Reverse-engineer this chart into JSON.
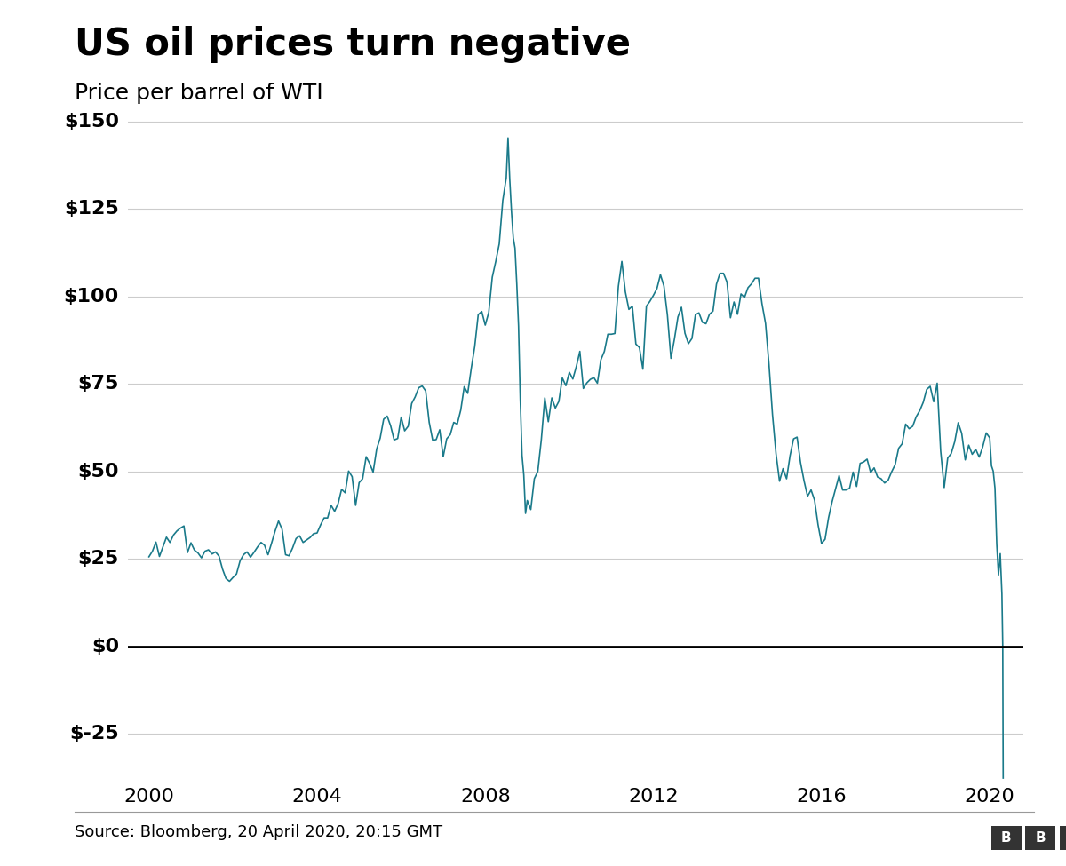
{
  "title": "US oil prices turn negative",
  "subtitle": "Price per barrel of WTI",
  "source_text": "Source: Bloomberg, 20 April 2020, 20:15 GMT",
  "line_color": "#1a7a8a",
  "background_color": "#ffffff",
  "zero_line_color": "#000000",
  "grid_color": "#cccccc",
  "title_fontsize": 30,
  "subtitle_fontsize": 18,
  "ytick_labels": [
    "$-25",
    "$0",
    "$25",
    "$50",
    "$75",
    "$100",
    "$125",
    "$150"
  ],
  "ytick_values": [
    -25,
    0,
    25,
    50,
    75,
    100,
    125,
    150
  ],
  "ylim": [
    -38,
    155
  ],
  "xlim_start": 1999.5,
  "xlim_end": 2020.8,
  "xtick_years": [
    2000,
    2004,
    2008,
    2012,
    2016,
    2020
  ],
  "wti_data": [
    [
      2000.0,
      25.6
    ],
    [
      2000.083,
      27.2
    ],
    [
      2000.167,
      29.8
    ],
    [
      2000.25,
      25.7
    ],
    [
      2000.333,
      28.4
    ],
    [
      2000.417,
      31.2
    ],
    [
      2000.5,
      29.7
    ],
    [
      2000.583,
      31.8
    ],
    [
      2000.667,
      33.0
    ],
    [
      2000.75,
      33.8
    ],
    [
      2000.833,
      34.4
    ],
    [
      2000.917,
      26.8
    ],
    [
      2001.0,
      29.6
    ],
    [
      2001.083,
      27.5
    ],
    [
      2001.167,
      26.7
    ],
    [
      2001.25,
      25.3
    ],
    [
      2001.333,
      27.2
    ],
    [
      2001.417,
      27.6
    ],
    [
      2001.5,
      26.4
    ],
    [
      2001.583,
      27.0
    ],
    [
      2001.667,
      25.8
    ],
    [
      2001.75,
      22.1
    ],
    [
      2001.833,
      19.4
    ],
    [
      2001.917,
      18.6
    ],
    [
      2002.0,
      19.7
    ],
    [
      2002.083,
      20.7
    ],
    [
      2002.167,
      24.4
    ],
    [
      2002.25,
      26.2
    ],
    [
      2002.333,
      27.0
    ],
    [
      2002.417,
      25.5
    ],
    [
      2002.5,
      26.9
    ],
    [
      2002.583,
      28.4
    ],
    [
      2002.667,
      29.7
    ],
    [
      2002.75,
      28.9
    ],
    [
      2002.833,
      26.2
    ],
    [
      2002.917,
      29.5
    ],
    [
      2003.0,
      32.9
    ],
    [
      2003.083,
      35.8
    ],
    [
      2003.167,
      33.5
    ],
    [
      2003.25,
      26.2
    ],
    [
      2003.333,
      25.9
    ],
    [
      2003.417,
      28.1
    ],
    [
      2003.5,
      30.8
    ],
    [
      2003.583,
      31.6
    ],
    [
      2003.667,
      29.7
    ],
    [
      2003.75,
      30.4
    ],
    [
      2003.833,
      31.1
    ],
    [
      2003.917,
      32.2
    ],
    [
      2004.0,
      32.4
    ],
    [
      2004.083,
      34.7
    ],
    [
      2004.167,
      36.7
    ],
    [
      2004.25,
      36.7
    ],
    [
      2004.333,
      40.3
    ],
    [
      2004.417,
      38.6
    ],
    [
      2004.5,
      40.8
    ],
    [
      2004.583,
      44.9
    ],
    [
      2004.667,
      43.9
    ],
    [
      2004.75,
      50.1
    ],
    [
      2004.833,
      48.5
    ],
    [
      2004.917,
      40.3
    ],
    [
      2005.0,
      46.8
    ],
    [
      2005.083,
      47.9
    ],
    [
      2005.167,
      54.2
    ],
    [
      2005.25,
      52.3
    ],
    [
      2005.333,
      49.8
    ],
    [
      2005.417,
      56.4
    ],
    [
      2005.5,
      59.5
    ],
    [
      2005.583,
      64.9
    ],
    [
      2005.667,
      65.8
    ],
    [
      2005.75,
      63.0
    ],
    [
      2005.833,
      59.0
    ],
    [
      2005.917,
      59.4
    ],
    [
      2006.0,
      65.5
    ],
    [
      2006.083,
      61.6
    ],
    [
      2006.167,
      62.9
    ],
    [
      2006.25,
      69.4
    ],
    [
      2006.333,
      71.3
    ],
    [
      2006.417,
      73.9
    ],
    [
      2006.5,
      74.4
    ],
    [
      2006.583,
      73.0
    ],
    [
      2006.667,
      64.0
    ],
    [
      2006.75,
      58.9
    ],
    [
      2006.833,
      59.1
    ],
    [
      2006.917,
      61.9
    ],
    [
      2007.0,
      54.2
    ],
    [
      2007.083,
      59.3
    ],
    [
      2007.167,
      60.5
    ],
    [
      2007.25,
      64.0
    ],
    [
      2007.333,
      63.5
    ],
    [
      2007.417,
      67.5
    ],
    [
      2007.5,
      74.2
    ],
    [
      2007.583,
      72.3
    ],
    [
      2007.667,
      79.4
    ],
    [
      2007.75,
      85.7
    ],
    [
      2007.833,
      94.8
    ],
    [
      2007.917,
      95.7
    ],
    [
      2008.0,
      91.8
    ],
    [
      2008.083,
      95.4
    ],
    [
      2008.167,
      105.5
    ],
    [
      2008.25,
      110.0
    ],
    [
      2008.333,
      115.0
    ],
    [
      2008.417,
      127.4
    ],
    [
      2008.5,
      133.9
    ],
    [
      2008.542,
      145.3
    ],
    [
      2008.583,
      133.4
    ],
    [
      2008.625,
      124.1
    ],
    [
      2008.667,
      116.7
    ],
    [
      2008.708,
      113.8
    ],
    [
      2008.75,
      103.6
    ],
    [
      2008.792,
      91.5
    ],
    [
      2008.833,
      70.5
    ],
    [
      2008.875,
      54.6
    ],
    [
      2008.917,
      49.0
    ],
    [
      2008.958,
      38.0
    ],
    [
      2009.0,
      41.7
    ],
    [
      2009.083,
      39.1
    ],
    [
      2009.167,
      47.9
    ],
    [
      2009.25,
      50.0
    ],
    [
      2009.333,
      59.0
    ],
    [
      2009.417,
      71.0
    ],
    [
      2009.5,
      64.2
    ],
    [
      2009.583,
      71.0
    ],
    [
      2009.667,
      68.1
    ],
    [
      2009.75,
      70.0
    ],
    [
      2009.833,
      76.7
    ],
    [
      2009.917,
      74.5
    ],
    [
      2010.0,
      78.3
    ],
    [
      2010.083,
      76.4
    ],
    [
      2010.167,
      80.0
    ],
    [
      2010.25,
      84.3
    ],
    [
      2010.333,
      73.7
    ],
    [
      2010.417,
      75.3
    ],
    [
      2010.5,
      76.3
    ],
    [
      2010.583,
      76.8
    ],
    [
      2010.667,
      75.2
    ],
    [
      2010.75,
      81.9
    ],
    [
      2010.833,
      84.3
    ],
    [
      2010.917,
      89.2
    ],
    [
      2011.0,
      89.2
    ],
    [
      2011.083,
      89.4
    ],
    [
      2011.167,
      102.9
    ],
    [
      2011.25,
      110.0
    ],
    [
      2011.333,
      101.3
    ],
    [
      2011.417,
      96.3
    ],
    [
      2011.5,
      97.2
    ],
    [
      2011.583,
      86.4
    ],
    [
      2011.667,
      85.4
    ],
    [
      2011.75,
      79.2
    ],
    [
      2011.833,
      97.2
    ],
    [
      2011.917,
      98.6
    ],
    [
      2012.0,
      100.3
    ],
    [
      2012.083,
      102.2
    ],
    [
      2012.167,
      106.2
    ],
    [
      2012.25,
      103.0
    ],
    [
      2012.333,
      94.7
    ],
    [
      2012.417,
      82.3
    ],
    [
      2012.5,
      87.8
    ],
    [
      2012.583,
      94.1
    ],
    [
      2012.667,
      96.9
    ],
    [
      2012.75,
      89.5
    ],
    [
      2012.833,
      86.5
    ],
    [
      2012.917,
      88.0
    ],
    [
      2013.0,
      94.8
    ],
    [
      2013.083,
      95.3
    ],
    [
      2013.167,
      92.6
    ],
    [
      2013.25,
      92.2
    ],
    [
      2013.333,
      94.9
    ],
    [
      2013.417,
      95.8
    ],
    [
      2013.5,
      103.5
    ],
    [
      2013.583,
      106.6
    ],
    [
      2013.667,
      106.6
    ],
    [
      2013.75,
      104.1
    ],
    [
      2013.833,
      93.9
    ],
    [
      2013.917,
      98.4
    ],
    [
      2014.0,
      94.9
    ],
    [
      2014.083,
      100.7
    ],
    [
      2014.167,
      99.7
    ],
    [
      2014.25,
      102.5
    ],
    [
      2014.333,
      103.6
    ],
    [
      2014.417,
      105.2
    ],
    [
      2014.5,
      105.2
    ],
    [
      2014.583,
      97.9
    ],
    [
      2014.667,
      92.3
    ],
    [
      2014.75,
      80.5
    ],
    [
      2014.833,
      66.2
    ],
    [
      2014.917,
      55.0
    ],
    [
      2015.0,
      47.2
    ],
    [
      2015.083,
      50.8
    ],
    [
      2015.167,
      47.9
    ],
    [
      2015.25,
      54.5
    ],
    [
      2015.333,
      59.3
    ],
    [
      2015.417,
      59.8
    ],
    [
      2015.5,
      52.5
    ],
    [
      2015.583,
      47.3
    ],
    [
      2015.667,
      42.9
    ],
    [
      2015.75,
      44.7
    ],
    [
      2015.833,
      41.8
    ],
    [
      2015.917,
      34.7
    ],
    [
      2016.0,
      29.4
    ],
    [
      2016.083,
      30.6
    ],
    [
      2016.167,
      36.8
    ],
    [
      2016.25,
      41.3
    ],
    [
      2016.333,
      45.0
    ],
    [
      2016.417,
      48.8
    ],
    [
      2016.5,
      44.7
    ],
    [
      2016.583,
      44.7
    ],
    [
      2016.667,
      45.2
    ],
    [
      2016.75,
      49.8
    ],
    [
      2016.833,
      45.7
    ],
    [
      2016.917,
      52.3
    ],
    [
      2017.0,
      52.7
    ],
    [
      2017.083,
      53.5
    ],
    [
      2017.167,
      49.7
    ],
    [
      2017.25,
      51.0
    ],
    [
      2017.333,
      48.4
    ],
    [
      2017.417,
      47.9
    ],
    [
      2017.5,
      46.7
    ],
    [
      2017.583,
      47.5
    ],
    [
      2017.667,
      49.9
    ],
    [
      2017.75,
      51.9
    ],
    [
      2017.833,
      56.6
    ],
    [
      2017.917,
      57.9
    ],
    [
      2018.0,
      63.5
    ],
    [
      2018.083,
      62.2
    ],
    [
      2018.167,
      62.9
    ],
    [
      2018.25,
      65.6
    ],
    [
      2018.333,
      67.3
    ],
    [
      2018.417,
      69.7
    ],
    [
      2018.5,
      73.4
    ],
    [
      2018.583,
      74.3
    ],
    [
      2018.667,
      69.9
    ],
    [
      2018.75,
      75.2
    ],
    [
      2018.833,
      55.8
    ],
    [
      2018.917,
      45.4
    ],
    [
      2019.0,
      53.8
    ],
    [
      2019.083,
      55.1
    ],
    [
      2019.167,
      58.5
    ],
    [
      2019.25,
      63.9
    ],
    [
      2019.333,
      60.9
    ],
    [
      2019.417,
      53.3
    ],
    [
      2019.5,
      57.5
    ],
    [
      2019.583,
      54.9
    ],
    [
      2019.667,
      56.3
    ],
    [
      2019.75,
      54.1
    ],
    [
      2019.833,
      57.0
    ],
    [
      2019.917,
      61.0
    ],
    [
      2020.0,
      59.6
    ],
    [
      2020.042,
      51.6
    ],
    [
      2020.083,
      50.1
    ],
    [
      2020.125,
      45.2
    ],
    [
      2020.167,
      29.2
    ],
    [
      2020.208,
      20.4
    ],
    [
      2020.25,
      26.5
    ],
    [
      2020.29,
      15.0
    ],
    [
      2020.31,
      0.0
    ],
    [
      2020.32,
      -37.63
    ]
  ]
}
